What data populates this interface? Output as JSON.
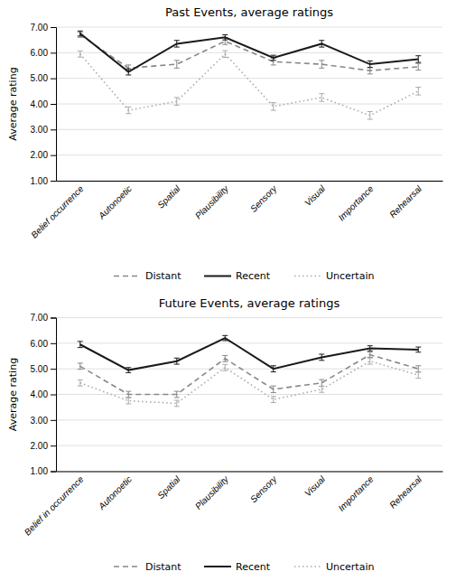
{
  "chart_data": [
    {
      "type": "line",
      "title": "Past Events, average ratings",
      "ylabel": "Average rating",
      "categories": [
        "Belief occurrence",
        "Autonoetic",
        "Spatial",
        "Plausibility",
        "Sensory",
        "Visual",
        "Importance",
        "Rehearsal"
      ],
      "series": [
        {
          "name": "Distant",
          "color": "#888888",
          "line_style": "dashed",
          "values": [
            6.7,
            5.4,
            5.55,
            6.45,
            5.65,
            5.55,
            5.3,
            5.45
          ],
          "errors": [
            0.1,
            0.12,
            0.15,
            0.13,
            0.13,
            0.15,
            0.13,
            0.13
          ]
        },
        {
          "name": "Recent",
          "color": "#1a1a1a",
          "line_style": "solid",
          "values": [
            6.75,
            5.25,
            6.35,
            6.6,
            5.8,
            6.35,
            5.55,
            5.75
          ],
          "errors": [
            0.1,
            0.12,
            0.13,
            0.1,
            0.1,
            0.13,
            0.13,
            0.13
          ]
        },
        {
          "name": "Uncertain",
          "color": "#aaaaaa",
          "line_style": "dotted",
          "values": [
            5.95,
            3.75,
            4.1,
            5.95,
            3.9,
            4.25,
            3.55,
            4.5
          ],
          "errors": [
            0.12,
            0.13,
            0.15,
            0.13,
            0.15,
            0.15,
            0.15,
            0.15
          ]
        }
      ],
      "ylim": [
        1.0,
        7.0
      ],
      "yticks": [
        {
          "value": 1.0,
          "label": "1.00"
        },
        {
          "value": 2.0,
          "label": "2.00"
        },
        {
          "value": 3.0,
          "label": "3.00"
        },
        {
          "value": 4.0,
          "label": "4.00"
        },
        {
          "value": 5.0,
          "label": "5.00"
        },
        {
          "value": 6.0,
          "label": "6.00"
        },
        {
          "value": 7.0,
          "label": "7.00"
        }
      ],
      "grid": true,
      "legend": "bottom"
    },
    {
      "type": "line",
      "title": "Future Events, average ratings",
      "ylabel": "Average rating",
      "categories": [
        "Belief in occurrence",
        "Autonoetic",
        "Spatial",
        "Plausibility",
        "Sensory",
        "Visual",
        "Importance",
        "Rehearsal"
      ],
      "series": [
        {
          "name": "Distant",
          "color": "#888888",
          "line_style": "dashed",
          "values": [
            5.1,
            4.0,
            4.0,
            5.4,
            4.2,
            4.45,
            5.55,
            5.0
          ],
          "errors": [
            0.12,
            0.12,
            0.12,
            0.12,
            0.13,
            0.13,
            0.1,
            0.12
          ]
        },
        {
          "name": "Recent",
          "color": "#1a1a1a",
          "line_style": "solid",
          "values": [
            5.95,
            4.95,
            5.3,
            6.2,
            5.0,
            5.45,
            5.8,
            5.75
          ],
          "errors": [
            0.12,
            0.1,
            0.12,
            0.1,
            0.12,
            0.12,
            0.1,
            0.1
          ]
        },
        {
          "name": "Uncertain",
          "color": "#aaaaaa",
          "line_style": "dotted",
          "values": [
            4.45,
            3.75,
            3.65,
            5.05,
            3.8,
            4.2,
            5.3,
            4.75
          ],
          "errors": [
            0.12,
            0.12,
            0.12,
            0.12,
            0.12,
            0.12,
            0.12,
            0.12
          ]
        }
      ],
      "ylim": [
        1.0,
        7.0
      ],
      "yticks": [
        {
          "value": 1.0,
          "label": "1.00"
        },
        {
          "value": 2.0,
          "label": "2.00"
        },
        {
          "value": 3.0,
          "label": "3.00"
        },
        {
          "value": 4.0,
          "label": "4.00"
        },
        {
          "value": 5.0,
          "label": "5.00"
        },
        {
          "value": 6.0,
          "label": "6.00"
        },
        {
          "value": 7.0,
          "label": "7.00"
        }
      ],
      "grid": true,
      "legend": "bottom"
    }
  ]
}
